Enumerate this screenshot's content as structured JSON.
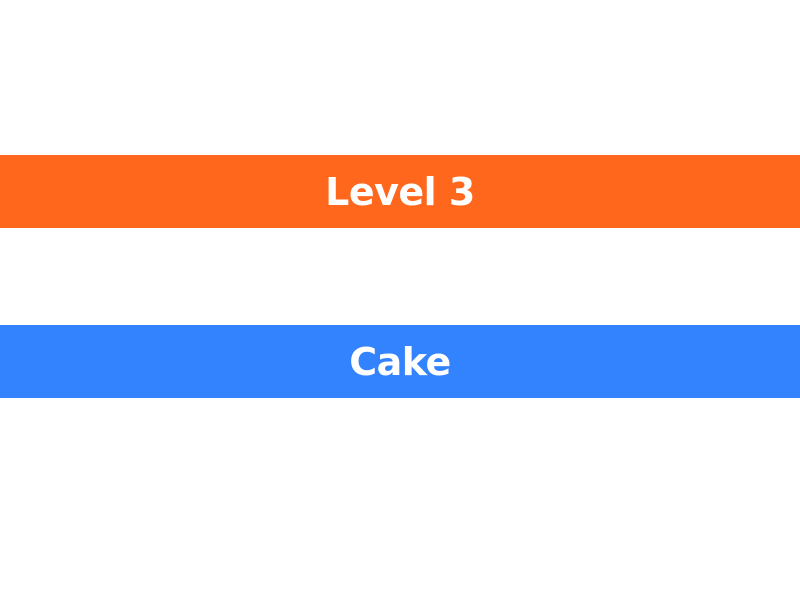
{
  "level_banner": {
    "text": "Level 3",
    "color": "#ff671d"
  },
  "word_banner": {
    "text": "Cake",
    "color": "#3483fe"
  },
  "colors": {
    "background": "#ffffff",
    "text": "#ffffff"
  }
}
